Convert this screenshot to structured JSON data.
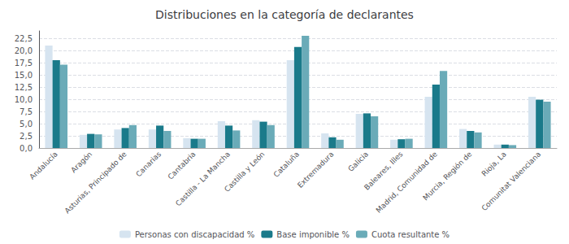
{
  "chart_data": {
    "type": "bar",
    "title": "Distribuciones en la categoría de declarantes",
    "categories": [
      "Andalucía",
      "Aragón",
      "Asturias, Principado de",
      "Canarias",
      "Cantabria",
      "Castilla - La Mancha",
      "Castilla y León",
      "Cataluña",
      "Extremadura",
      "Galicia",
      "Baleares, Illes",
      "Madrid, Comunidad de",
      "Murcia, Región de",
      "Rioja, La",
      "Comunitat Valenciana"
    ],
    "series": [
      {
        "name": "Personas con discapacidad %",
        "color": "#d6e4f0",
        "values": [
          21.0,
          2.7,
          3.8,
          3.8,
          2.0,
          5.5,
          5.7,
          18.0,
          3.0,
          7.0,
          1.7,
          10.5,
          3.9,
          0.7,
          10.5
        ]
      },
      {
        "name": "Base imponible %",
        "color": "#1a7a8a",
        "values": [
          18.0,
          2.9,
          4.1,
          4.6,
          1.9,
          4.6,
          5.4,
          20.7,
          2.2,
          7.1,
          1.8,
          13.0,
          3.5,
          0.7,
          9.9
        ]
      },
      {
        "name": "Cuota resultante %",
        "color": "#6aabb8",
        "values": [
          17.1,
          2.8,
          4.7,
          3.5,
          1.9,
          3.6,
          4.7,
          23.0,
          1.7,
          6.5,
          1.9,
          15.8,
          3.2,
          0.6,
          9.5
        ]
      }
    ],
    "ylim": [
      0,
      24
    ],
    "yticks": [
      {
        "value": 0.0,
        "label": "0,0"
      },
      {
        "value": 2.5,
        "label": "2,5"
      },
      {
        "value": 5.0,
        "label": "5,0"
      },
      {
        "value": 7.5,
        "label": "7,5"
      },
      {
        "value": 10.0,
        "label": "10,0"
      },
      {
        "value": 12.5,
        "label": "12,5"
      },
      {
        "value": 15.0,
        "label": "15,0"
      },
      {
        "value": 17.5,
        "label": "17,5"
      },
      {
        "value": 20.0,
        "label": "20,0"
      },
      {
        "value": 22.5,
        "label": "22,5"
      }
    ],
    "grid": true,
    "legend": "bottom"
  }
}
